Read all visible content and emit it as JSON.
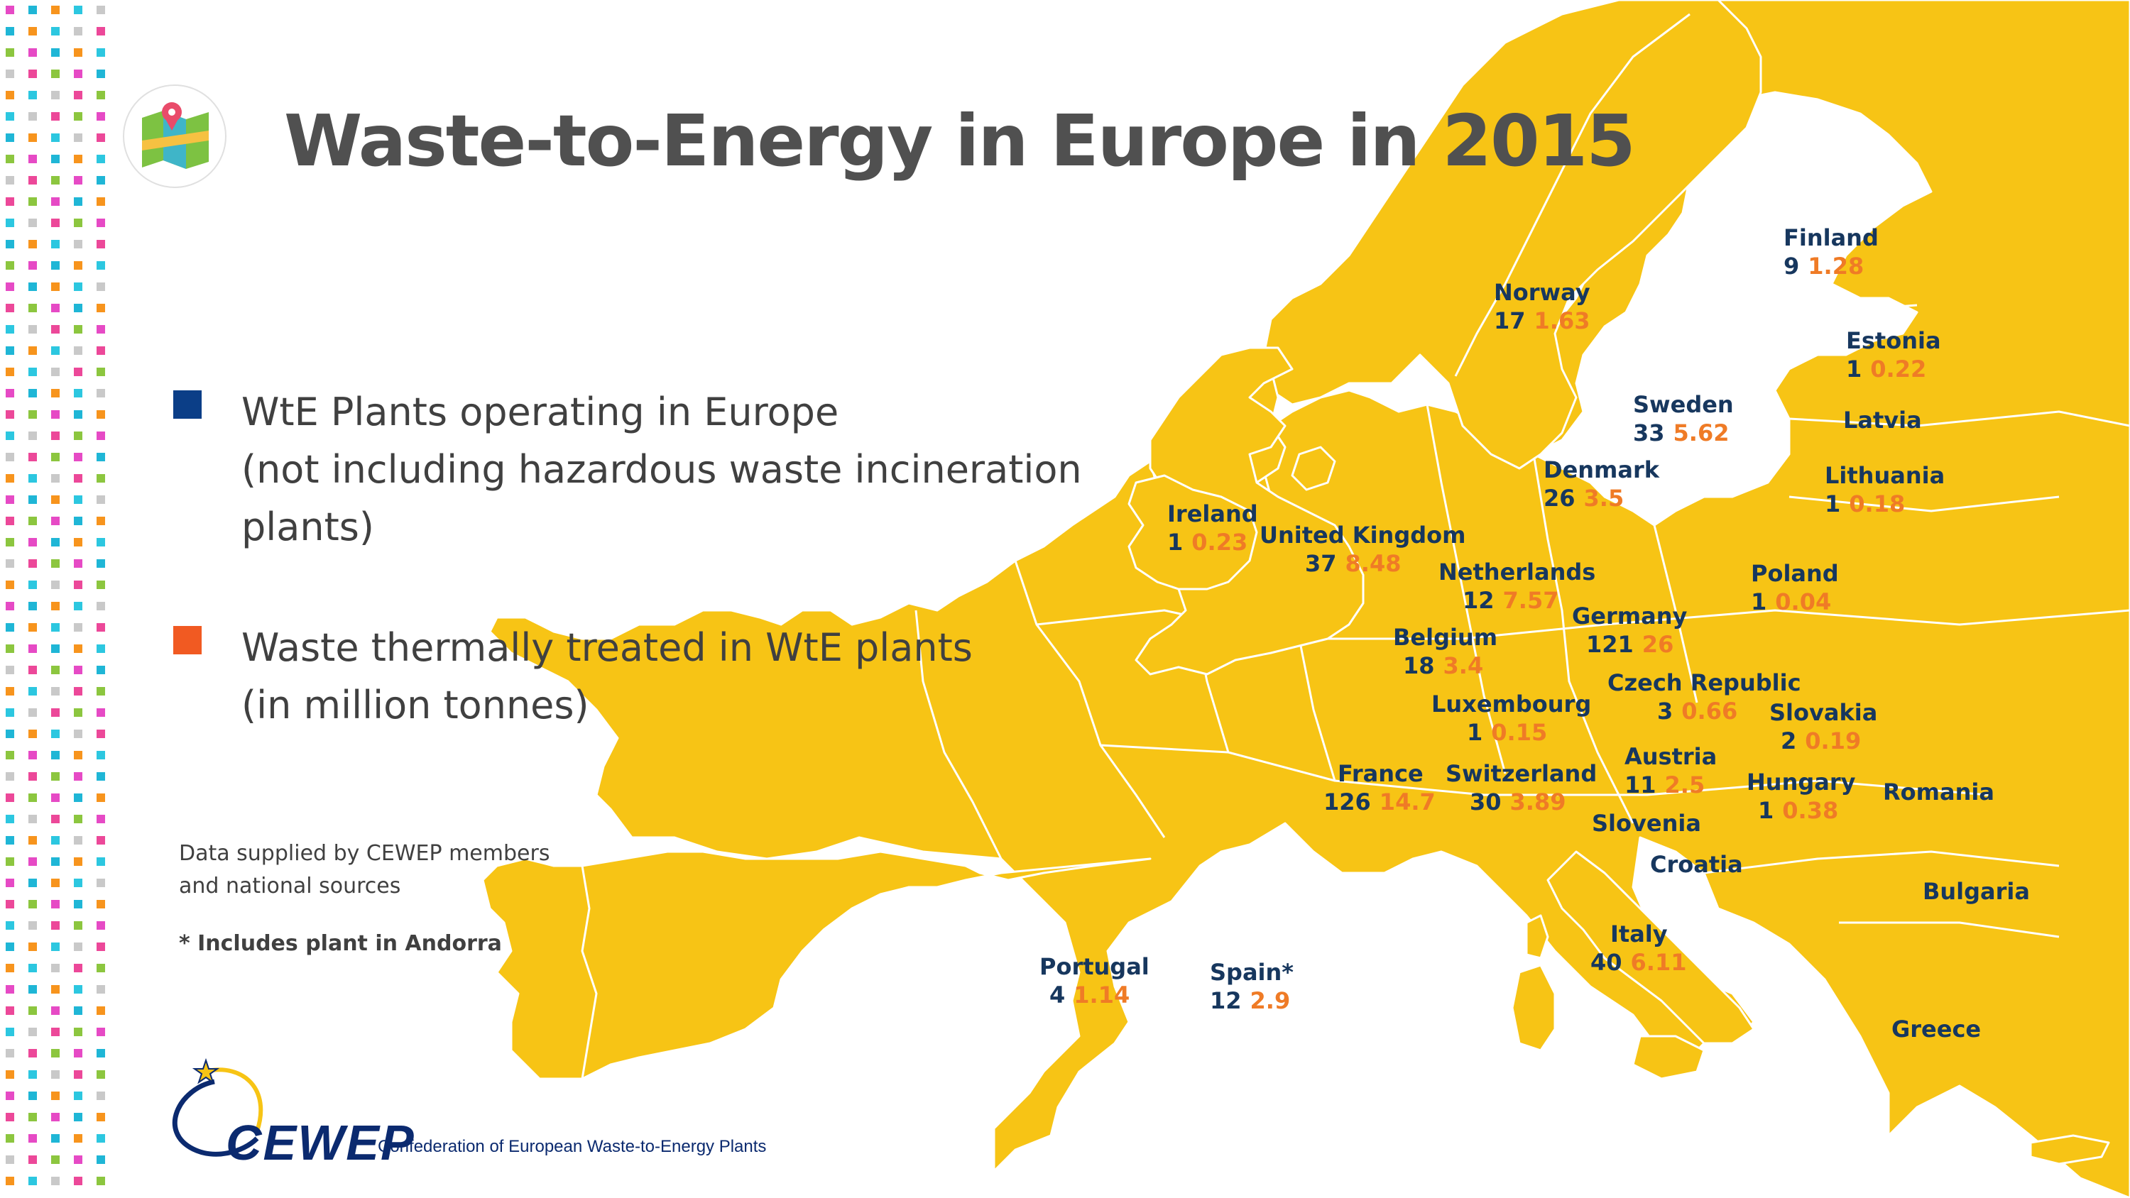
{
  "title": "Waste-to-Energy in Europe in 2015",
  "colors": {
    "land": "#f7c415",
    "plants_legend": "#0b3e87",
    "waste_legend": "#f15a22",
    "plants_text": "#17375e",
    "waste_text": "#ef7b26",
    "title_text": "#505050"
  },
  "header": {
    "icon": "map-pin-icon"
  },
  "legend": [
    {
      "key": "plants",
      "lines": [
        "WtE Plants operating in Europe",
        "(not including hazardous waste incineration",
        "plants)"
      ]
    },
    {
      "key": "waste",
      "lines": [
        "Waste thermally treated in WtE plants",
        "(in million tonnes)"
      ]
    }
  ],
  "source_note": [
    "Data supplied by CEWEP members",
    "and national sources"
  ],
  "footnote": "* Includes plant in Andorra",
  "logo": {
    "wordmark": "CEWEP",
    "tagline": "Confederation of European Waste-to-Energy Plants"
  },
  "countries": [
    {
      "name": "Finland",
      "plants": "9",
      "waste": "1.28"
    },
    {
      "name": "Norway",
      "plants": "17",
      "waste": "1.63"
    },
    {
      "name": "Estonia",
      "plants": "1",
      "waste": "0.22"
    },
    {
      "name": "Sweden",
      "plants": "33",
      "waste": "5.62"
    },
    {
      "name": "Latvia",
      "plants": "",
      "waste": ""
    },
    {
      "name": "Denmark",
      "plants": "26",
      "waste": "3.5"
    },
    {
      "name": "Lithuania",
      "plants": "1",
      "waste": "0.18"
    },
    {
      "name": "Ireland",
      "plants": "1",
      "waste": "0.23"
    },
    {
      "name": "United Kingdom",
      "plants": "37",
      "waste": "8.48"
    },
    {
      "name": "Netherlands",
      "plants": "12",
      "waste": "7.57"
    },
    {
      "name": "Poland",
      "plants": "1",
      "waste": "0.04"
    },
    {
      "name": "Germany",
      "plants": "121",
      "waste": "26"
    },
    {
      "name": "Belgium",
      "plants": "18",
      "waste": "3.4"
    },
    {
      "name": "Czech Republic",
      "plants": "3",
      "waste": "0.66"
    },
    {
      "name": "Luxembourg",
      "plants": "1",
      "waste": "0.15"
    },
    {
      "name": "Slovakia",
      "plants": "2",
      "waste": "0.19"
    },
    {
      "name": "Austria",
      "plants": "11",
      "waste": "2.5"
    },
    {
      "name": "France",
      "plants": "126",
      "waste": "14.7"
    },
    {
      "name": "Switzerland",
      "plants": "30",
      "waste": "3.89"
    },
    {
      "name": "Hungary",
      "plants": "1",
      "waste": "0.38"
    },
    {
      "name": "Romania",
      "plants": "",
      "waste": ""
    },
    {
      "name": "Slovenia",
      "plants": "",
      "waste": ""
    },
    {
      "name": "Croatia",
      "plants": "",
      "waste": ""
    },
    {
      "name": "Bulgaria",
      "plants": "",
      "waste": ""
    },
    {
      "name": "Italy",
      "plants": "40",
      "waste": "6.11"
    },
    {
      "name": "Portugal",
      "plants": "4",
      "waste": "1.14"
    },
    {
      "name": "Spain*",
      "plants": "12",
      "waste": "2.9"
    },
    {
      "name": "Greece",
      "plants": "",
      "waste": ""
    }
  ]
}
